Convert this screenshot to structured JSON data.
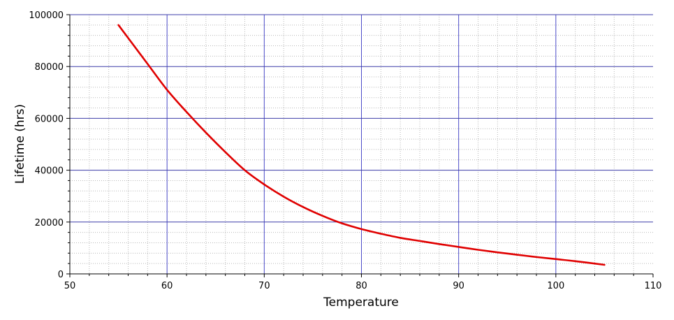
{
  "chart_data": {
    "type": "line",
    "title": "",
    "xlabel": "Temperature",
    "ylabel": "Lifetime (hrs)",
    "xlim": [
      50,
      110
    ],
    "ylim": [
      0,
      100000
    ],
    "x_major_ticks": [
      50,
      60,
      70,
      80,
      90,
      100,
      110
    ],
    "y_major_ticks": [
      0,
      20000,
      40000,
      60000,
      80000,
      100000
    ],
    "x_minor_step": 2,
    "y_minor_step": 4000,
    "grid": true,
    "legend": "none",
    "series": [
      {
        "color": "#e00000",
        "x": [
          55,
          56,
          58,
          60,
          62,
          64,
          66,
          68,
          70,
          72,
          74,
          76,
          78,
          80,
          82,
          84,
          86,
          88,
          90,
          92,
          94,
          96,
          98,
          100,
          102,
          105
        ],
        "y": [
          96000,
          91000,
          81000,
          71000,
          62500,
          54500,
          47000,
          40000,
          34500,
          29800,
          25800,
          22400,
          19500,
          17300,
          15500,
          13900,
          12700,
          11500,
          10400,
          9300,
          8300,
          7400,
          6500,
          5700,
          4900,
          3500
        ]
      }
    ]
  }
}
